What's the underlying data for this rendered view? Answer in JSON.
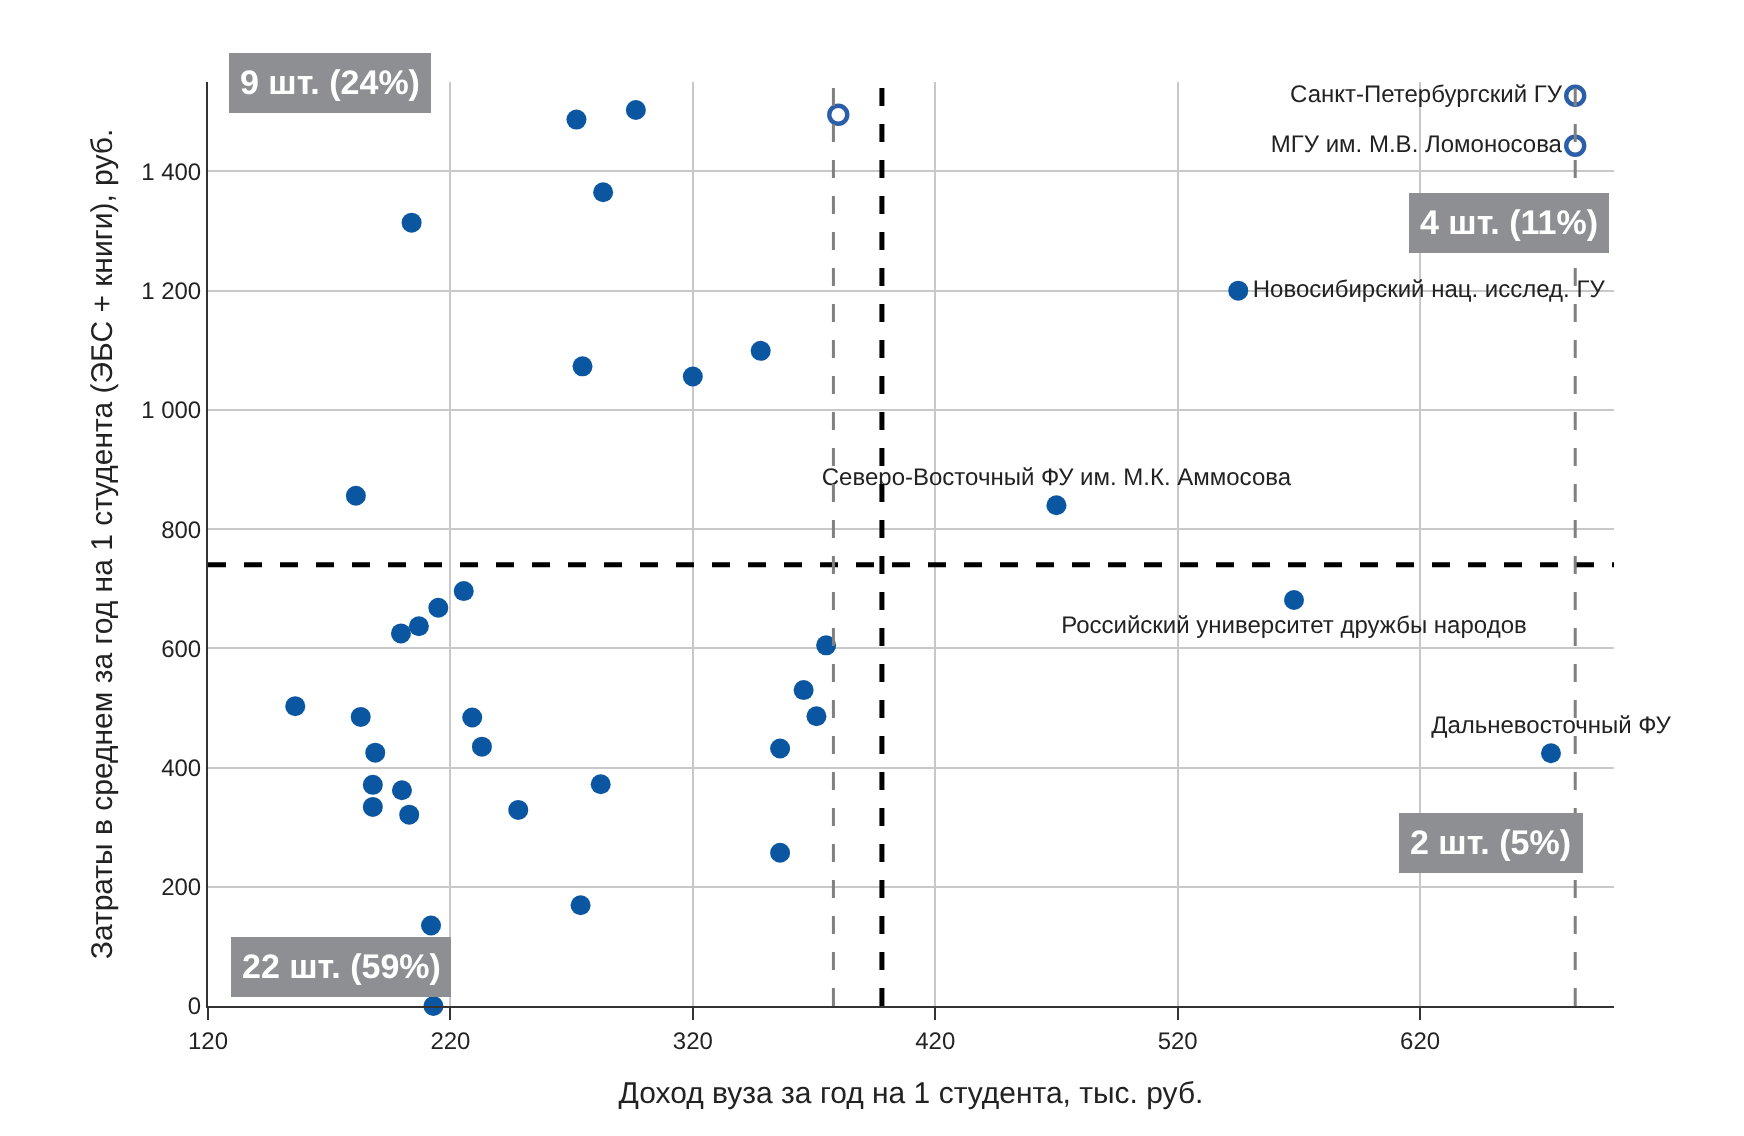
{
  "chart_data": {
    "type": "scatter",
    "xlabel": "Доход вуза за год на 1 студента, тыс. руб.",
    "ylabel": "Затраты в среднем за год на 1 студента (ЭБС + книги), руб.",
    "series": [
      {
        "color": "#0a56a0",
        "marker": "circle",
        "x": [
          272,
          296.5,
          283,
          204,
          274.5,
          320,
          348,
          181,
          225.5,
          215,
          207,
          199.6,
          375,
          156,
          183,
          229,
          365.7,
          371,
          189,
          233,
          356,
          188,
          200,
          282,
          188,
          203,
          248,
          356,
          273.7,
          212,
          213,
          545,
          470,
          568,
          674
        ],
        "values": [
          1487,
          1503,
          1365,
          1314,
          1073,
          1056,
          1099,
          856,
          696,
          668,
          637,
          625,
          605,
          503,
          485,
          484,
          530,
          486,
          425,
          435,
          432,
          371,
          362,
          372,
          334,
          321,
          329,
          257,
          169,
          135,
          0,
          1200,
          840,
          681,
          424
        ],
        "value_labels": [
          null,
          null,
          null,
          null,
          null,
          null,
          null,
          null,
          null,
          null,
          null,
          null,
          null,
          null,
          null,
          null,
          null,
          null,
          null,
          null,
          null,
          null,
          null,
          null,
          null,
          null,
          null,
          null,
          null,
          null,
          null,
          "Новосибирский нац. исслед. ГУ",
          "Северо-Восточный ФУ им. М.К. Аммосова",
          "Российский университет дружбы народов",
          "Дальневосточный ФУ"
        ]
      },
      {
        "color": "#2a5ea8",
        "marker": "circle-open",
        "x": [
          380,
          684,
          684
        ],
        "values": [
          1495,
          1527,
          1443
        ],
        "value_labels": [
          null,
          "Санкт-Петербургский ГУ",
          "МГУ им. М.В. Ломоносова"
        ]
      }
    ],
    "xlim": [
      120,
      700
    ],
    "ylim": [
      0,
      1550
    ],
    "xticks": [
      120,
      220,
      320,
      420,
      520,
      620
    ],
    "yticks": [
      0,
      200,
      400,
      600,
      800,
      {
        "value": 1000,
        "label": "1 000"
      },
      {
        "value": 1200,
        "label": "1 200"
      },
      {
        "value": 1400,
        "label": "1 400"
      }
    ],
    "grid": true,
    "ref_lines": [
      {
        "axis": "x",
        "value": 398,
        "color": "#000000",
        "line_style": "dashed"
      },
      {
        "axis": "y",
        "value": 740,
        "color": "#000000",
        "line_style": "dashed"
      },
      {
        "axis": "x",
        "value": 378,
        "color": "#808080",
        "line_style": "dashed"
      },
      {
        "axis": "x",
        "value": 684,
        "color": "#808080",
        "line_style": "dashed"
      }
    ],
    "annotations": [
      "9 шт. (24%)",
      "4 шт. (11%)",
      "2 шт. (5%)",
      "22 шт. (59%)"
    ]
  }
}
